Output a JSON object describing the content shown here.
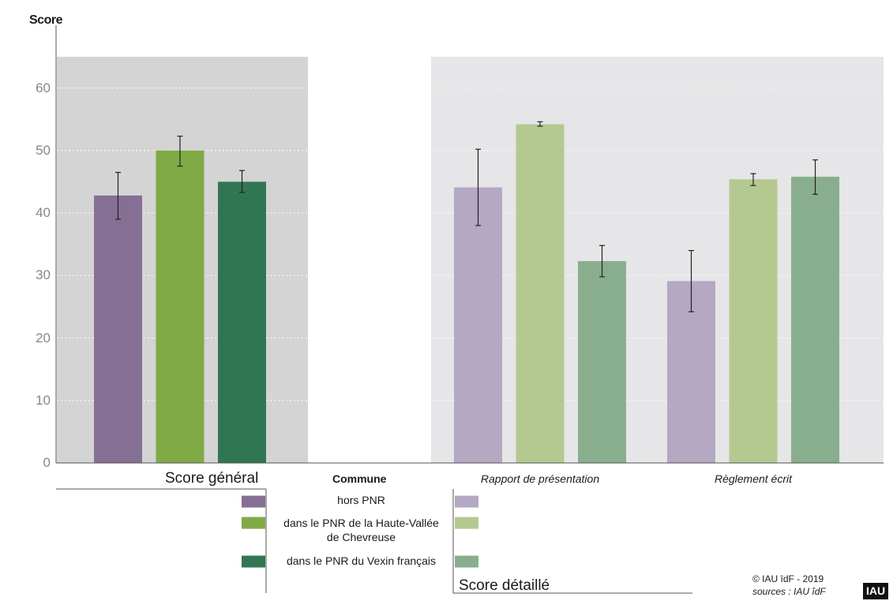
{
  "chart_data": {
    "type": "bar",
    "ylabel": "Score",
    "ylim": [
      0,
      65
    ],
    "yticks": [
      0,
      10,
      20,
      30,
      40,
      50,
      60
    ],
    "grid": true,
    "groups": [
      {
        "label": "Score général",
        "bars": [
          {
            "series": "hors PNR",
            "value": 42.8,
            "err_low": 39.0,
            "err_high": 46.5
          },
          {
            "series": "dans le PNR de la Haute-Vallée de Chevreuse",
            "value": 50.0,
            "err_low": 47.5,
            "err_high": 52.3
          },
          {
            "series": "dans le PNR du Vexin français",
            "value": 45.0,
            "err_low": 43.3,
            "err_high": 46.8
          }
        ]
      },
      {
        "label": "Rapport de présentation",
        "bars": [
          {
            "series": "hors PNR",
            "value": 44.1,
            "err_low": 38.0,
            "err_high": 50.2
          },
          {
            "series": "dans le PNR de la Haute-Vallée de Chevreuse",
            "value": 54.2,
            "err_low": 53.9,
            "err_high": 54.6
          },
          {
            "series": "dans le PNR du Vexin français",
            "value": 32.3,
            "err_low": 29.8,
            "err_high": 34.8
          }
        ]
      },
      {
        "label": "Règlement écrit",
        "bars": [
          {
            "series": "hors PNR",
            "value": 29.1,
            "err_low": 24.2,
            "err_high": 34.0
          },
          {
            "series": "dans le PNR de la Haute-Vallée de Chevreuse",
            "value": 45.4,
            "err_low": 44.4,
            "err_high": 46.3
          },
          {
            "series": "dans le PNR du Vexin français",
            "value": 45.8,
            "err_low": 43.0,
            "err_high": 48.5
          }
        ]
      }
    ],
    "colors": {
      "general": [
        "#866f95",
        "#80aa45",
        "#317652"
      ],
      "detailed": [
        "#b5a8c3",
        "#b4c990",
        "#89ae8e"
      ],
      "panel_general": "#d4d4d4",
      "panel_detailed": "#e6e5e7"
    },
    "legend": {
      "title": "Commune",
      "general_title": "Score général",
      "detailed_title": "Score détaillé",
      "entries": [
        {
          "lines": [
            "hors PNR"
          ]
        },
        {
          "lines": [
            "dans le PNR de la Haute-Vallée",
            "de Chevreuse"
          ]
        },
        {
          "lines": [
            "dans le PNR du Vexin français"
          ]
        }
      ]
    }
  },
  "footer": {
    "copyright": "© IAU îdF  - 2019",
    "sources": "sources : IAU îdF",
    "logo": "IAU"
  }
}
